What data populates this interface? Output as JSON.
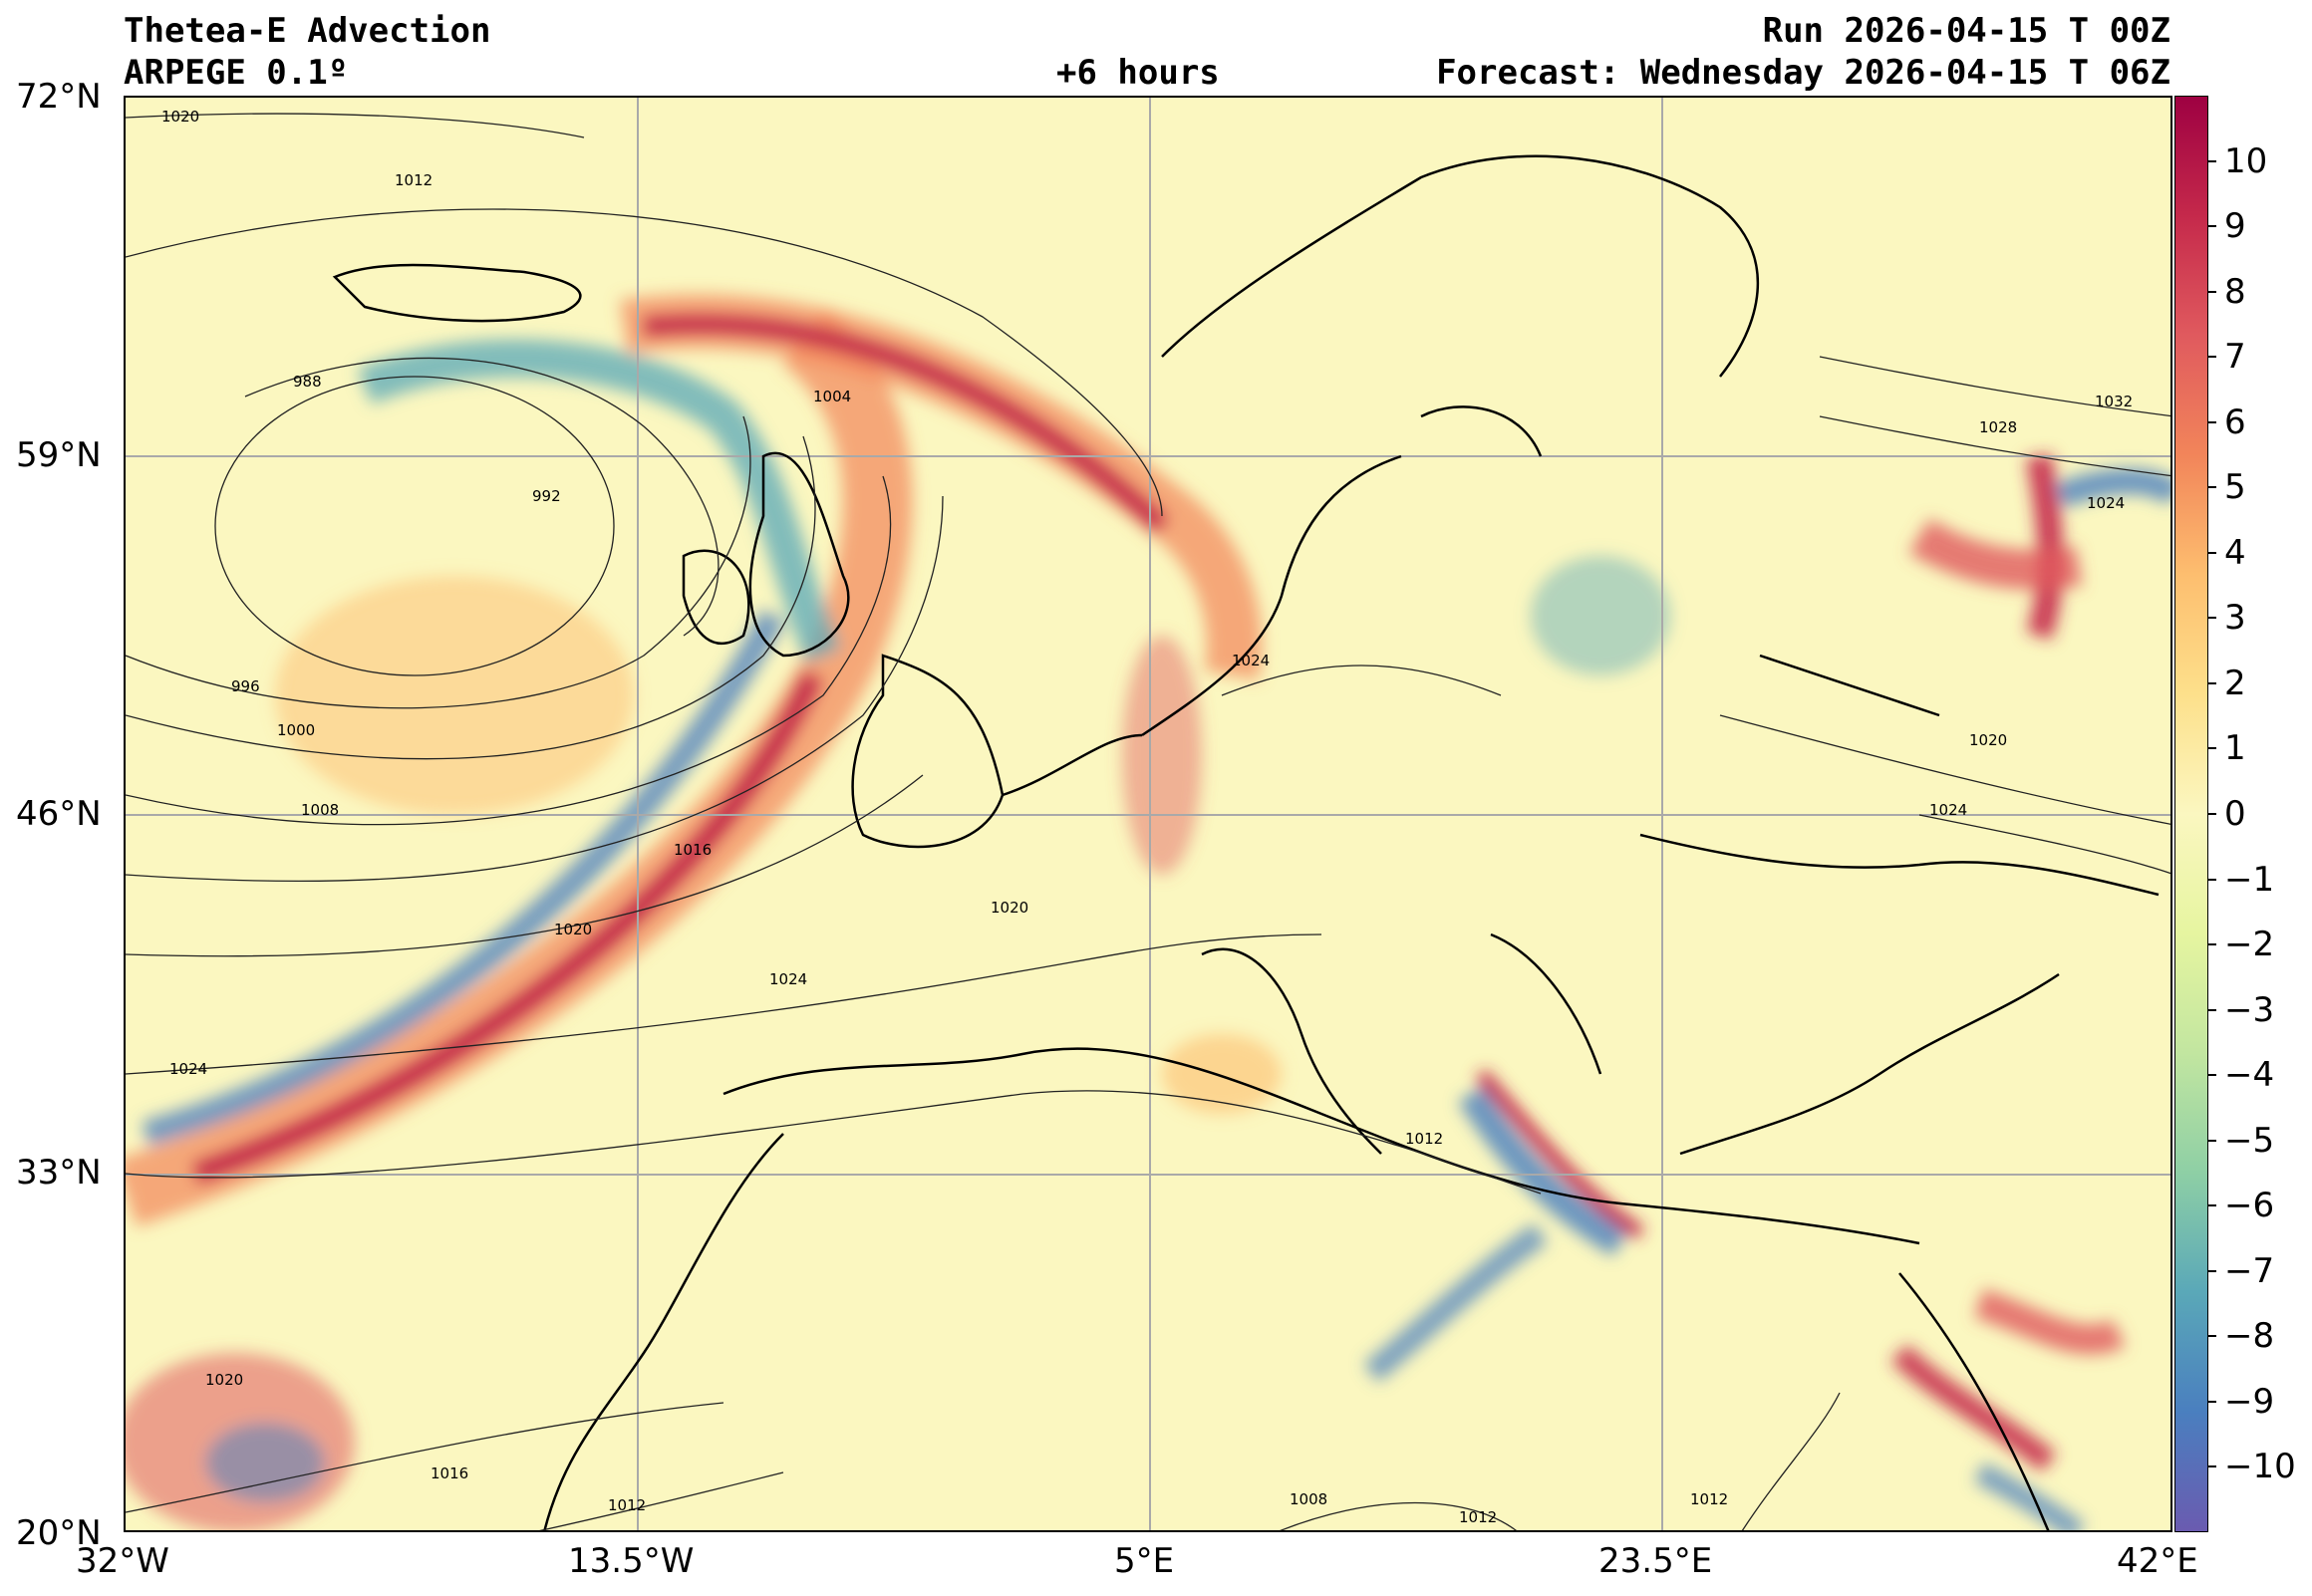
{
  "header": {
    "title_left_1": "Thetea-E Advection",
    "title_left_2": "ARPEGE 0.1º",
    "title_center": "+6 hours",
    "title_right_1": "Run 2026-04-15 T 00Z",
    "title_right_2": "Forecast: Wednesday 2026-04-15 T 06Z"
  },
  "axes": {
    "lat_labels": [
      "72°N",
      "59°N",
      "46°N",
      "33°N",
      "20°N"
    ],
    "lon_labels": [
      "32°W",
      "13.5°W",
      "5°E",
      "23.5°E",
      "42°E"
    ]
  },
  "colorbar": {
    "labels": [
      "10",
      "9",
      "8",
      "7",
      "6",
      "5",
      "4",
      "3",
      "2",
      "1",
      "0",
      "−1",
      "−2",
      "−3",
      "−4",
      "−5",
      "−6",
      "−7",
      "−8",
      "−9",
      "−10"
    ],
    "colors": [
      "#9e0142",
      "#c5294b",
      "#e05a5e",
      "#f2855a",
      "#fdbe6f",
      "#fde08b",
      "#fbf7c0",
      "#e6f5a0",
      "#c2e6a0",
      "#8ecfa5",
      "#5aa8b8",
      "#4a7fbf",
      "#6a5bb0"
    ]
  },
  "isobars": {
    "labels": [
      "1020",
      "1012",
      "988",
      "1004",
      "992",
      "996",
      "1000",
      "1008",
      "1016",
      "1020",
      "1024",
      "1024",
      "1020",
      "1012",
      "1020",
      "1016",
      "1012",
      "1008",
      "1012",
      "1012",
      "1024",
      "1028",
      "1032",
      "1024",
      "1020",
      "1024"
    ]
  }
}
